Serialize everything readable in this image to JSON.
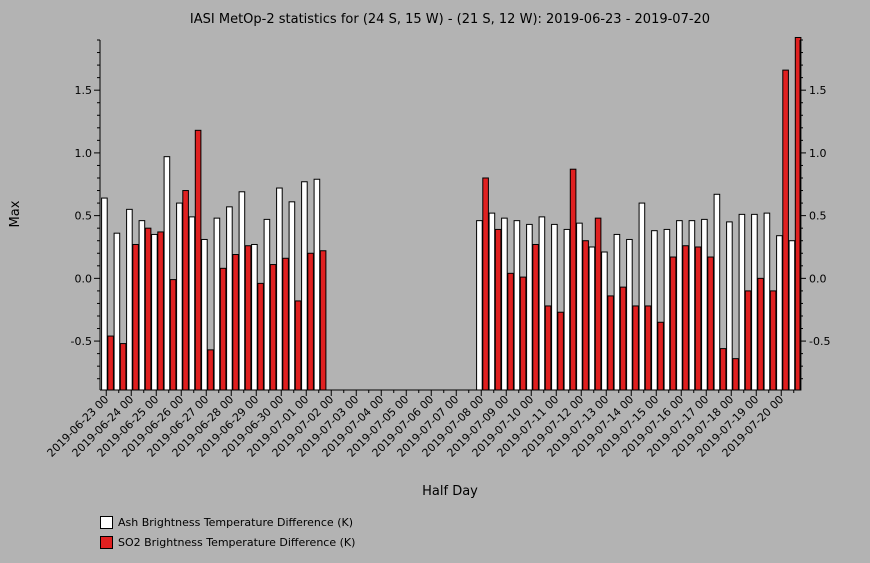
{
  "chart_data": {
    "type": "bar",
    "title": "IASI MetOp-2 statistics for (24 S, 15 W) - (21 S, 12 W): 2019-06-23 - 2019-07-20",
    "xlabel": "Half Day",
    "ylabel": "Max",
    "ylim": [
      -0.89,
      1.9
    ],
    "yticks": [
      -0.5,
      0.0,
      0.5,
      1.0,
      1.5
    ],
    "ytick_labels": [
      "-0.5",
      "0.0",
      "0.5",
      "1.0",
      "1.5"
    ],
    "categories": [
      "2019-06-23 00",
      "2019-06-23 12",
      "2019-06-24 00",
      "2019-06-24 12",
      "2019-06-25 00",
      "2019-06-25 12",
      "2019-06-26 00",
      "2019-06-26 12",
      "2019-06-27 00",
      "2019-06-27 12",
      "2019-06-28 00",
      "2019-06-28 12",
      "2019-06-29 00",
      "2019-06-29 12",
      "2019-06-30 00",
      "2019-06-30 12",
      "2019-07-01 00",
      "2019-07-01 12",
      "2019-07-02 00",
      "2019-07-02 12",
      "2019-07-03 00",
      "2019-07-03 12",
      "2019-07-04 00",
      "2019-07-04 12",
      "2019-07-05 00",
      "2019-07-05 12",
      "2019-07-06 00",
      "2019-07-06 12",
      "2019-07-07 00",
      "2019-07-07 12",
      "2019-07-08 00",
      "2019-07-08 12",
      "2019-07-09 00",
      "2019-07-09 12",
      "2019-07-10 00",
      "2019-07-10 12",
      "2019-07-11 00",
      "2019-07-11 12",
      "2019-07-12 00",
      "2019-07-12 12",
      "2019-07-13 00",
      "2019-07-13 12",
      "2019-07-14 00",
      "2019-07-14 12",
      "2019-07-15 00",
      "2019-07-15 12",
      "2019-07-16 00",
      "2019-07-16 12",
      "2019-07-17 00",
      "2019-07-17 12",
      "2019-07-18 00",
      "2019-07-18 12",
      "2019-07-19 00",
      "2019-07-19 12",
      "2019-07-20 00",
      "2019-07-20 12"
    ],
    "xtick_labels": [
      "2019-06-23 00",
      "2019-06-24 00",
      "2019-06-25 00",
      "2019-06-26 00",
      "2019-06-27 00",
      "2019-06-28 00",
      "2019-06-29 00",
      "2019-06-30 00",
      "2019-07-01 00",
      "2019-07-02 00",
      "2019-07-03 00",
      "2019-07-04 00",
      "2019-07-05 00",
      "2019-07-06 00",
      "2019-07-07 00",
      "2019-07-08 00",
      "2019-07-09 00",
      "2019-07-10 00",
      "2019-07-11 00",
      "2019-07-12 00",
      "2019-07-13 00",
      "2019-07-14 00",
      "2019-07-15 00",
      "2019-07-16 00",
      "2019-07-17 00",
      "2019-07-18 00",
      "2019-07-19 00",
      "2019-07-20 00"
    ],
    "series": [
      {
        "name": "Ash Brightness Temperature Difference (K)",
        "color": "#ffffff",
        "values": [
          0.64,
          0.36,
          0.55,
          0.46,
          0.35,
          0.97,
          0.6,
          0.49,
          0.31,
          0.48,
          0.57,
          0.69,
          0.27,
          0.47,
          0.72,
          0.61,
          0.77,
          0.79,
          null,
          null,
          null,
          null,
          null,
          null,
          null,
          null,
          null,
          null,
          null,
          null,
          0.46,
          0.52,
          0.48,
          0.46,
          0.43,
          0.49,
          0.43,
          0.39,
          0.44,
          0.25,
          0.21,
          0.35,
          0.31,
          0.6,
          0.38,
          0.39,
          0.46,
          0.46,
          0.47,
          0.67,
          0.45,
          0.51,
          0.51,
          0.52,
          0.34,
          0.3
        ]
      },
      {
        "name": "SO2 Brightness Temperature Difference (K)",
        "color": "#e02020",
        "values": [
          -0.46,
          -0.52,
          0.27,
          0.4,
          0.37,
          -0.01,
          0.7,
          1.18,
          -0.57,
          0.08,
          0.19,
          0.26,
          -0.04,
          0.11,
          0.16,
          -0.18,
          0.2,
          0.22,
          null,
          null,
          null,
          null,
          null,
          null,
          null,
          null,
          null,
          null,
          null,
          null,
          0.8,
          0.39,
          0.04,
          0.01,
          0.27,
          -0.22,
          -0.27,
          0.87,
          0.3,
          0.48,
          -0.14,
          -0.07,
          -0.22,
          -0.22,
          -0.35,
          0.17,
          0.26,
          0.25,
          0.17,
          -0.56,
          -0.64,
          -0.1,
          0.0,
          -0.1,
          1.66,
          1.92
        ]
      }
    ],
    "legend_position": "bottom-left",
    "grid": false
  }
}
